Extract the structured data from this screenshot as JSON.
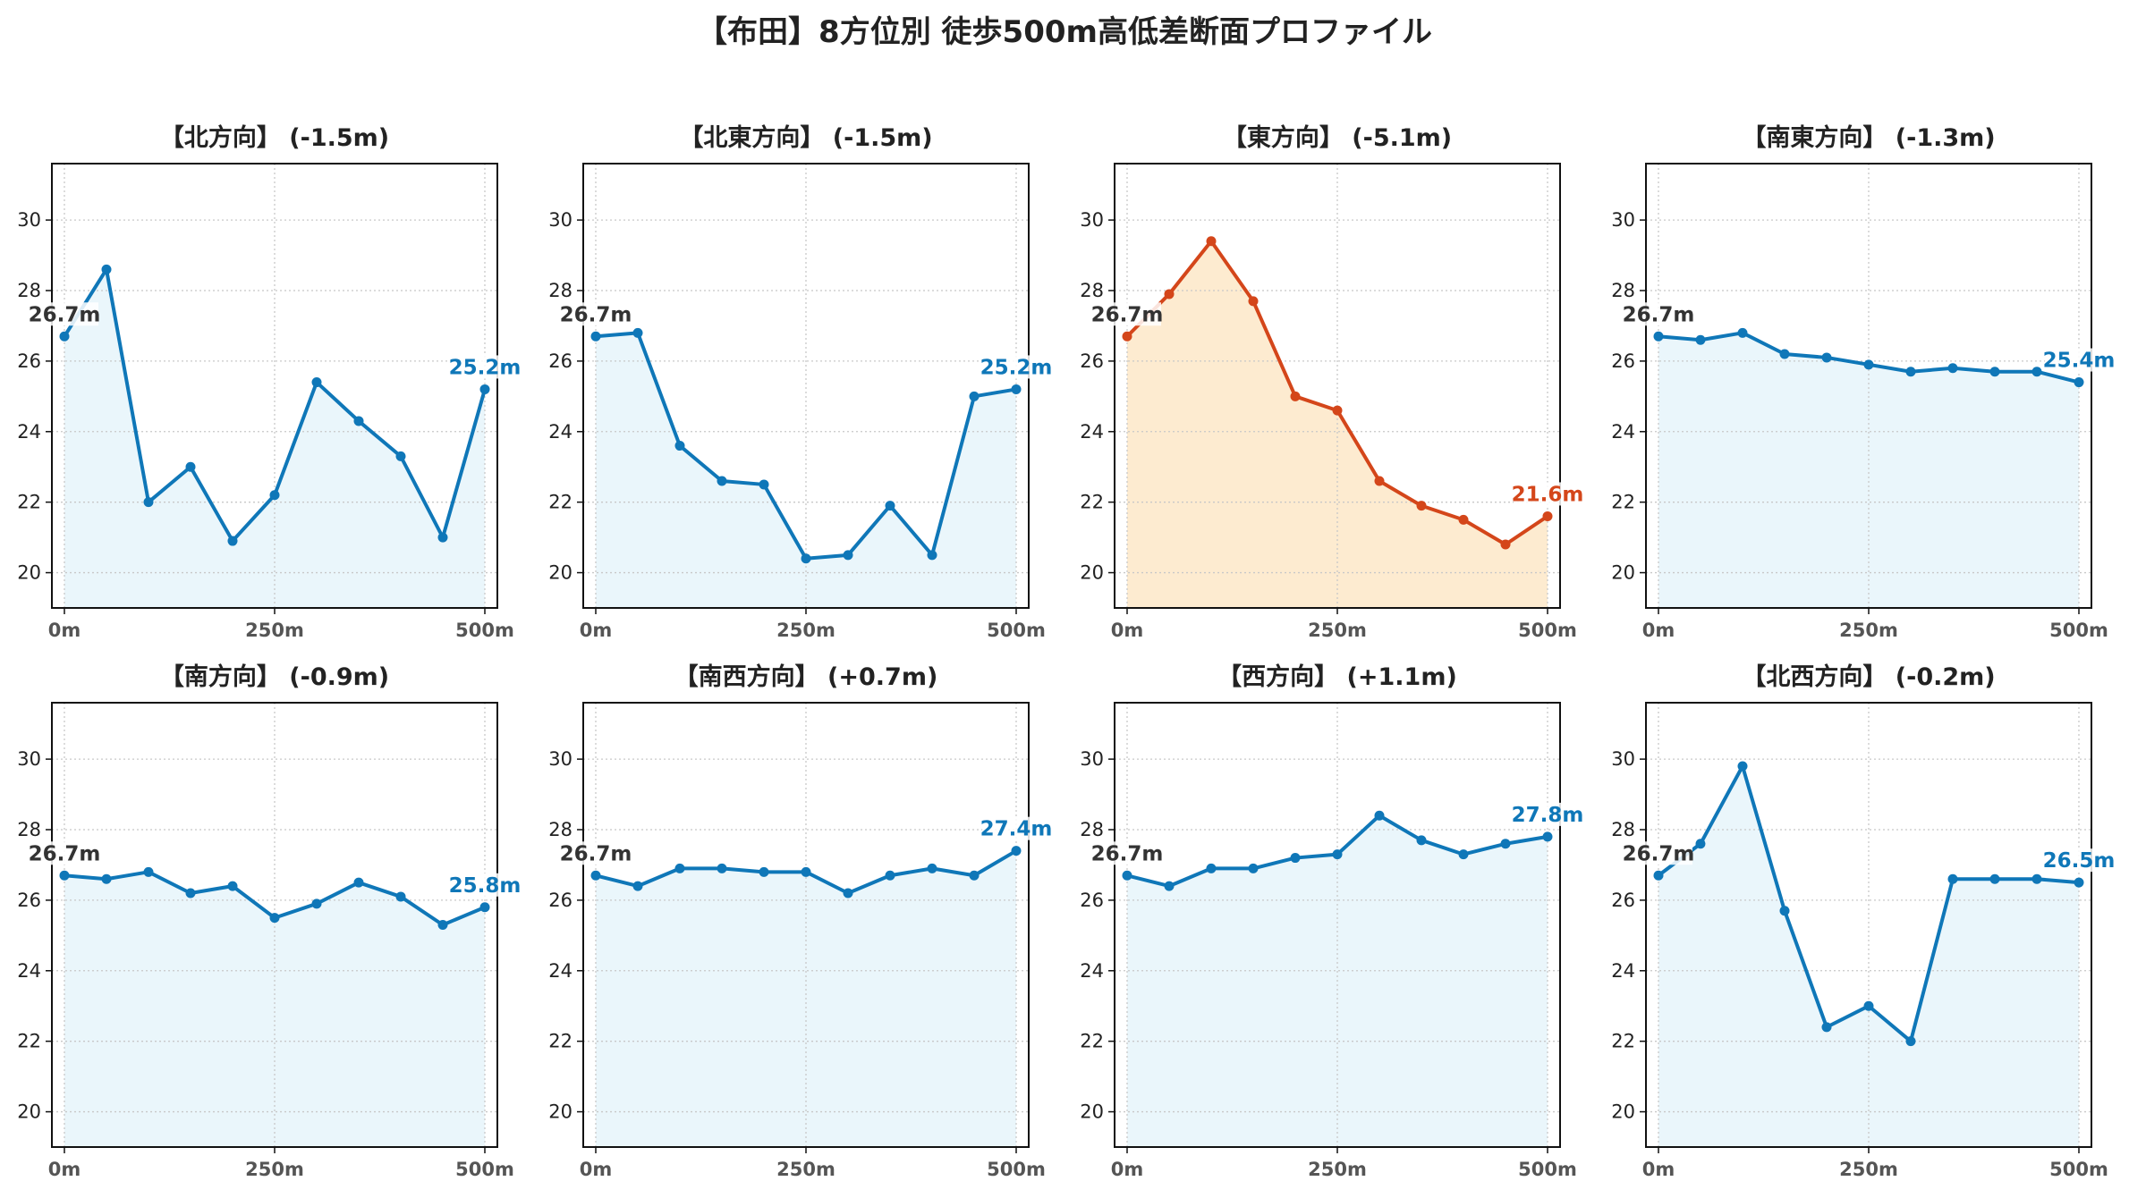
{
  "title": "【布田】8方位別 徒歩500m高低差断面プロファイル",
  "colors": {
    "normal_line": "#0f77b8",
    "normal_fill": "#eaf6fb",
    "highlight_line": "#d4461a",
    "highlight_fill": "#fdebd0",
    "start_label": "#333333",
    "grid": "#c8c8c8"
  },
  "chart_data": [
    {
      "type": "line",
      "title": "【北方向】 (-1.5m)",
      "x": [
        0,
        50,
        100,
        150,
        200,
        250,
        300,
        350,
        400,
        450,
        500
      ],
      "values": [
        26.7,
        28.6,
        22.0,
        23.0,
        20.9,
        22.2,
        25.4,
        24.3,
        23.3,
        21.0,
        25.2
      ],
      "start_label": "26.7m",
      "end_label": "25.2m",
      "highlight": false,
      "xticks": [
        "0m",
        "250m",
        "500m"
      ],
      "yticks": [
        20,
        22,
        24,
        26,
        28,
        30
      ],
      "ylim": [
        19,
        31.6
      ],
      "grid": true
    },
    {
      "type": "line",
      "title": "【北東方向】 (-1.5m)",
      "x": [
        0,
        50,
        100,
        150,
        200,
        250,
        300,
        350,
        400,
        450,
        500
      ],
      "values": [
        26.7,
        26.8,
        23.6,
        22.6,
        22.5,
        20.4,
        20.5,
        21.9,
        20.5,
        25.0,
        25.2
      ],
      "start_label": "26.7m",
      "end_label": "25.2m",
      "highlight": false,
      "xticks": [
        "0m",
        "250m",
        "500m"
      ],
      "yticks": [
        20,
        22,
        24,
        26,
        28,
        30
      ],
      "ylim": [
        19,
        31.6
      ],
      "grid": true
    },
    {
      "type": "line",
      "title": "【東方向】 (-5.1m)",
      "x": [
        0,
        50,
        100,
        150,
        200,
        250,
        300,
        350,
        400,
        450,
        500
      ],
      "values": [
        26.7,
        27.9,
        29.4,
        27.7,
        25.0,
        24.6,
        22.6,
        21.9,
        21.5,
        20.8,
        21.6
      ],
      "start_label": "26.7m",
      "end_label": "21.6m",
      "highlight": true,
      "xticks": [
        "0m",
        "250m",
        "500m"
      ],
      "yticks": [
        20,
        22,
        24,
        26,
        28,
        30
      ],
      "ylim": [
        19,
        31.6
      ],
      "grid": true
    },
    {
      "type": "line",
      "title": "【南東方向】 (-1.3m)",
      "x": [
        0,
        50,
        100,
        150,
        200,
        250,
        300,
        350,
        400,
        450,
        500
      ],
      "values": [
        26.7,
        26.6,
        26.8,
        26.2,
        26.1,
        25.9,
        25.7,
        25.8,
        25.7,
        25.7,
        25.4
      ],
      "start_label": "26.7m",
      "end_label": "25.4m",
      "highlight": false,
      "xticks": [
        "0m",
        "250m",
        "500m"
      ],
      "yticks": [
        20,
        22,
        24,
        26,
        28,
        30
      ],
      "ylim": [
        19,
        31.6
      ],
      "grid": true
    },
    {
      "type": "line",
      "title": "【南方向】 (-0.9m)",
      "x": [
        0,
        50,
        100,
        150,
        200,
        250,
        300,
        350,
        400,
        450,
        500
      ],
      "values": [
        26.7,
        26.6,
        26.8,
        26.2,
        26.4,
        25.5,
        25.9,
        26.5,
        26.1,
        25.3,
        25.8
      ],
      "start_label": "26.7m",
      "end_label": "25.8m",
      "highlight": false,
      "xticks": [
        "0m",
        "250m",
        "500m"
      ],
      "yticks": [
        20,
        22,
        24,
        26,
        28,
        30
      ],
      "ylim": [
        19,
        31.6
      ],
      "grid": true
    },
    {
      "type": "line",
      "title": "【南西方向】 (+0.7m)",
      "x": [
        0,
        50,
        100,
        150,
        200,
        250,
        300,
        350,
        400,
        450,
        500
      ],
      "values": [
        26.7,
        26.4,
        26.9,
        26.9,
        26.8,
        26.8,
        26.2,
        26.7,
        26.9,
        26.7,
        27.4
      ],
      "start_label": "26.7m",
      "end_label": "27.4m",
      "highlight": false,
      "xticks": [
        "0m",
        "250m",
        "500m"
      ],
      "yticks": [
        20,
        22,
        24,
        26,
        28,
        30
      ],
      "ylim": [
        19,
        31.6
      ],
      "grid": true
    },
    {
      "type": "line",
      "title": "【西方向】 (+1.1m)",
      "x": [
        0,
        50,
        100,
        150,
        200,
        250,
        300,
        350,
        400,
        450,
        500
      ],
      "values": [
        26.7,
        26.4,
        26.9,
        26.9,
        27.2,
        27.3,
        28.4,
        27.7,
        27.3,
        27.6,
        27.8
      ],
      "start_label": "26.7m",
      "end_label": "27.8m",
      "highlight": false,
      "xticks": [
        "0m",
        "250m",
        "500m"
      ],
      "yticks": [
        20,
        22,
        24,
        26,
        28,
        30
      ],
      "ylim": [
        19,
        31.6
      ],
      "grid": true
    },
    {
      "type": "line",
      "title": "【北西方向】 (-0.2m)",
      "x": [
        0,
        50,
        100,
        150,
        200,
        250,
        300,
        350,
        400,
        450,
        500
      ],
      "values": [
        26.7,
        27.6,
        29.8,
        25.7,
        22.4,
        23.0,
        22.0,
        26.6,
        26.6,
        26.6,
        26.5
      ],
      "start_label": "26.7m",
      "end_label": "26.5m",
      "highlight": false,
      "xticks": [
        "0m",
        "250m",
        "500m"
      ],
      "yticks": [
        20,
        22,
        24,
        26,
        28,
        30
      ],
      "ylim": [
        19,
        31.6
      ],
      "grid": true
    }
  ]
}
